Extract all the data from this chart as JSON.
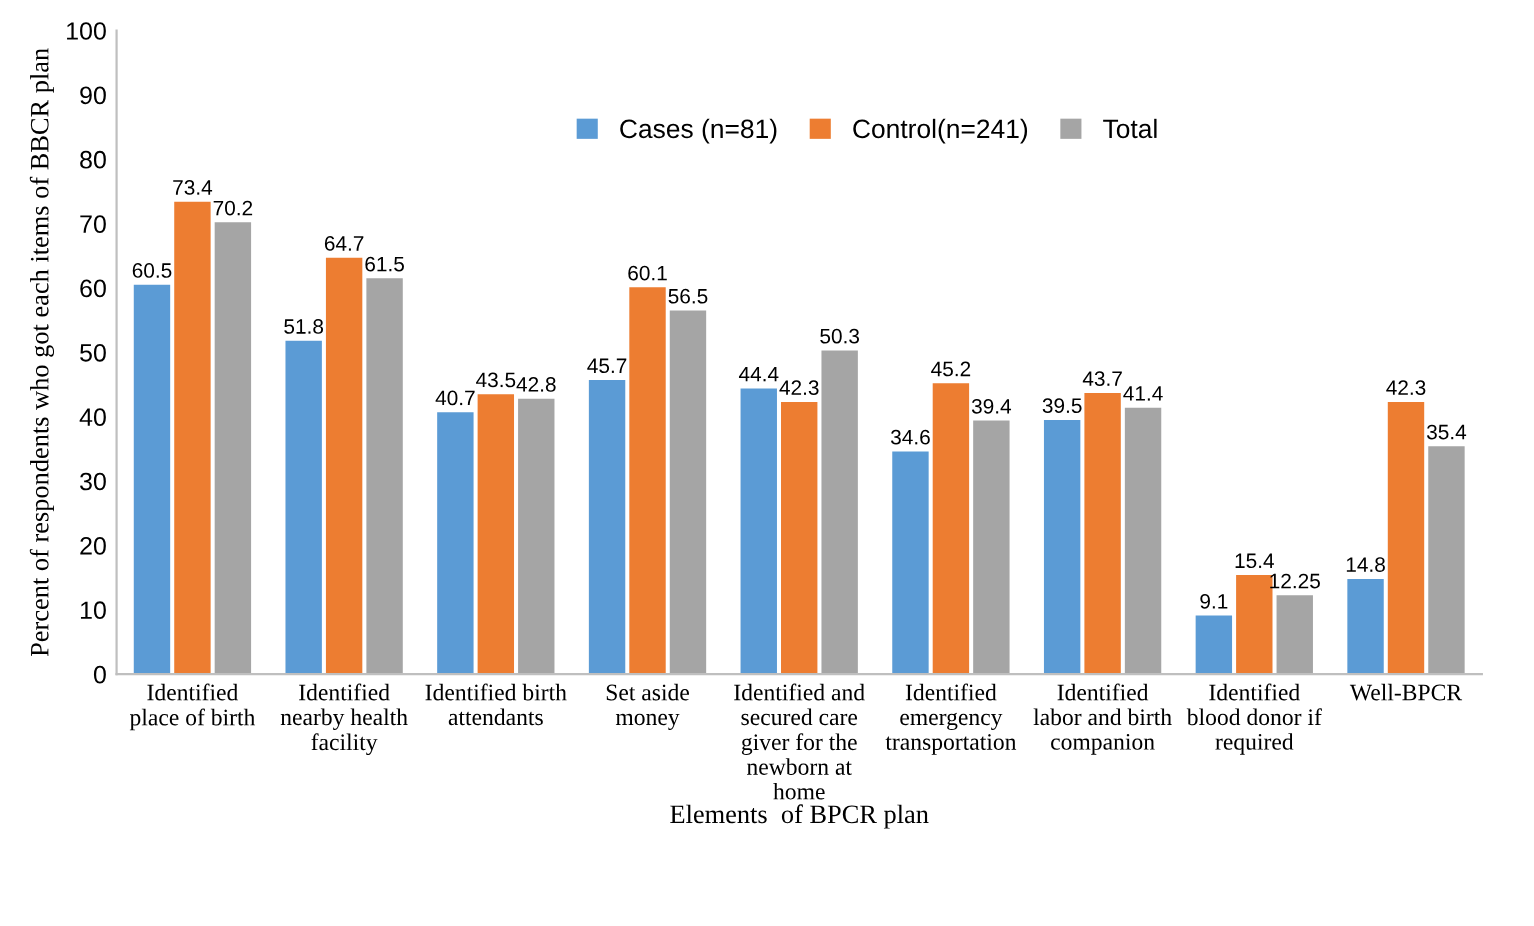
{
  "chart_data": {
    "type": "bar",
    "xlabel": "Elements  of BPCR plan",
    "ylabel": "Percent of respondents who got each items of BBCR plan",
    "categories": [
      "Identified\nplace of birth",
      "Identified\nnearby health\nfacility",
      "Identified birth\nattendants",
      "Set aside\nmoney",
      "Identified and\nsecured care\ngiver for the\nnewborn at\nhome",
      "Identified\nemergency\ntransportation",
      "Identified\nlabor and birth\ncompanion",
      "Identified\nblood donor if\nrequired",
      "Well-BPCR"
    ],
    "series": [
      {
        "name": "Cases (n=81)",
        "color": "#5b9bd5",
        "values": [
          60.5,
          51.8,
          40.7,
          45.7,
          44.4,
          34.6,
          39.5,
          9.1,
          14.8
        ]
      },
      {
        "name": "Control(n=241)",
        "color": "#ed7d31",
        "values": [
          73.4,
          64.7,
          43.5,
          60.1,
          42.3,
          45.2,
          43.7,
          15.4,
          42.3
        ]
      },
      {
        "name": "Total",
        "color": "#a5a5a5",
        "values": [
          70.2,
          61.5,
          42.8,
          56.5,
          50.3,
          39.4,
          41.4,
          12.25,
          35.4
        ]
      }
    ],
    "ylim": [
      0,
      100
    ],
    "yticks": [
      0,
      10,
      20,
      30,
      40,
      50,
      60,
      70,
      80,
      90,
      100
    ],
    "grid": false,
    "legend": "top",
    "data_labels": true
  }
}
